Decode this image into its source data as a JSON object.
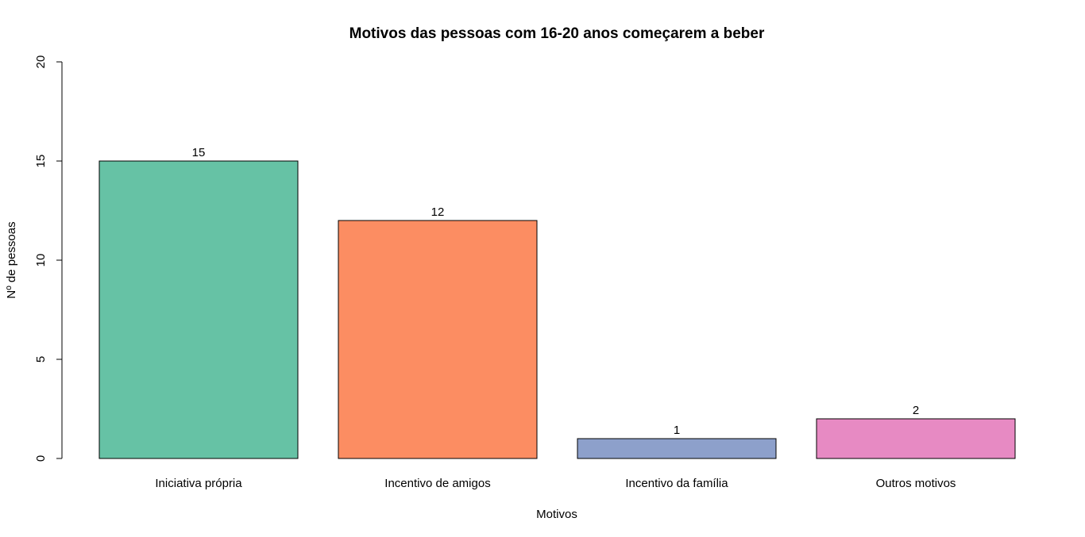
{
  "chart_data": {
    "type": "bar",
    "title": "Motivos das pessoas com 16-20 anos começarem a beber",
    "xlabel": "Motivos",
    "ylabel": "Nº de pessoas",
    "categories": [
      "Iniciativa própria",
      "Incentivo de amigos",
      "Incentivo da família",
      "Outros motivos"
    ],
    "values": [
      15,
      12,
      1,
      2
    ],
    "data_labels": [
      "15",
      "12",
      "1",
      "2"
    ],
    "colors": [
      "#66c2a5",
      "#fc8d62",
      "#8da0cb",
      "#e78ac3"
    ],
    "ylim": [
      0,
      20
    ],
    "yticks": [
      0,
      5,
      10,
      15,
      20
    ],
    "grid": false,
    "legend": "none"
  }
}
